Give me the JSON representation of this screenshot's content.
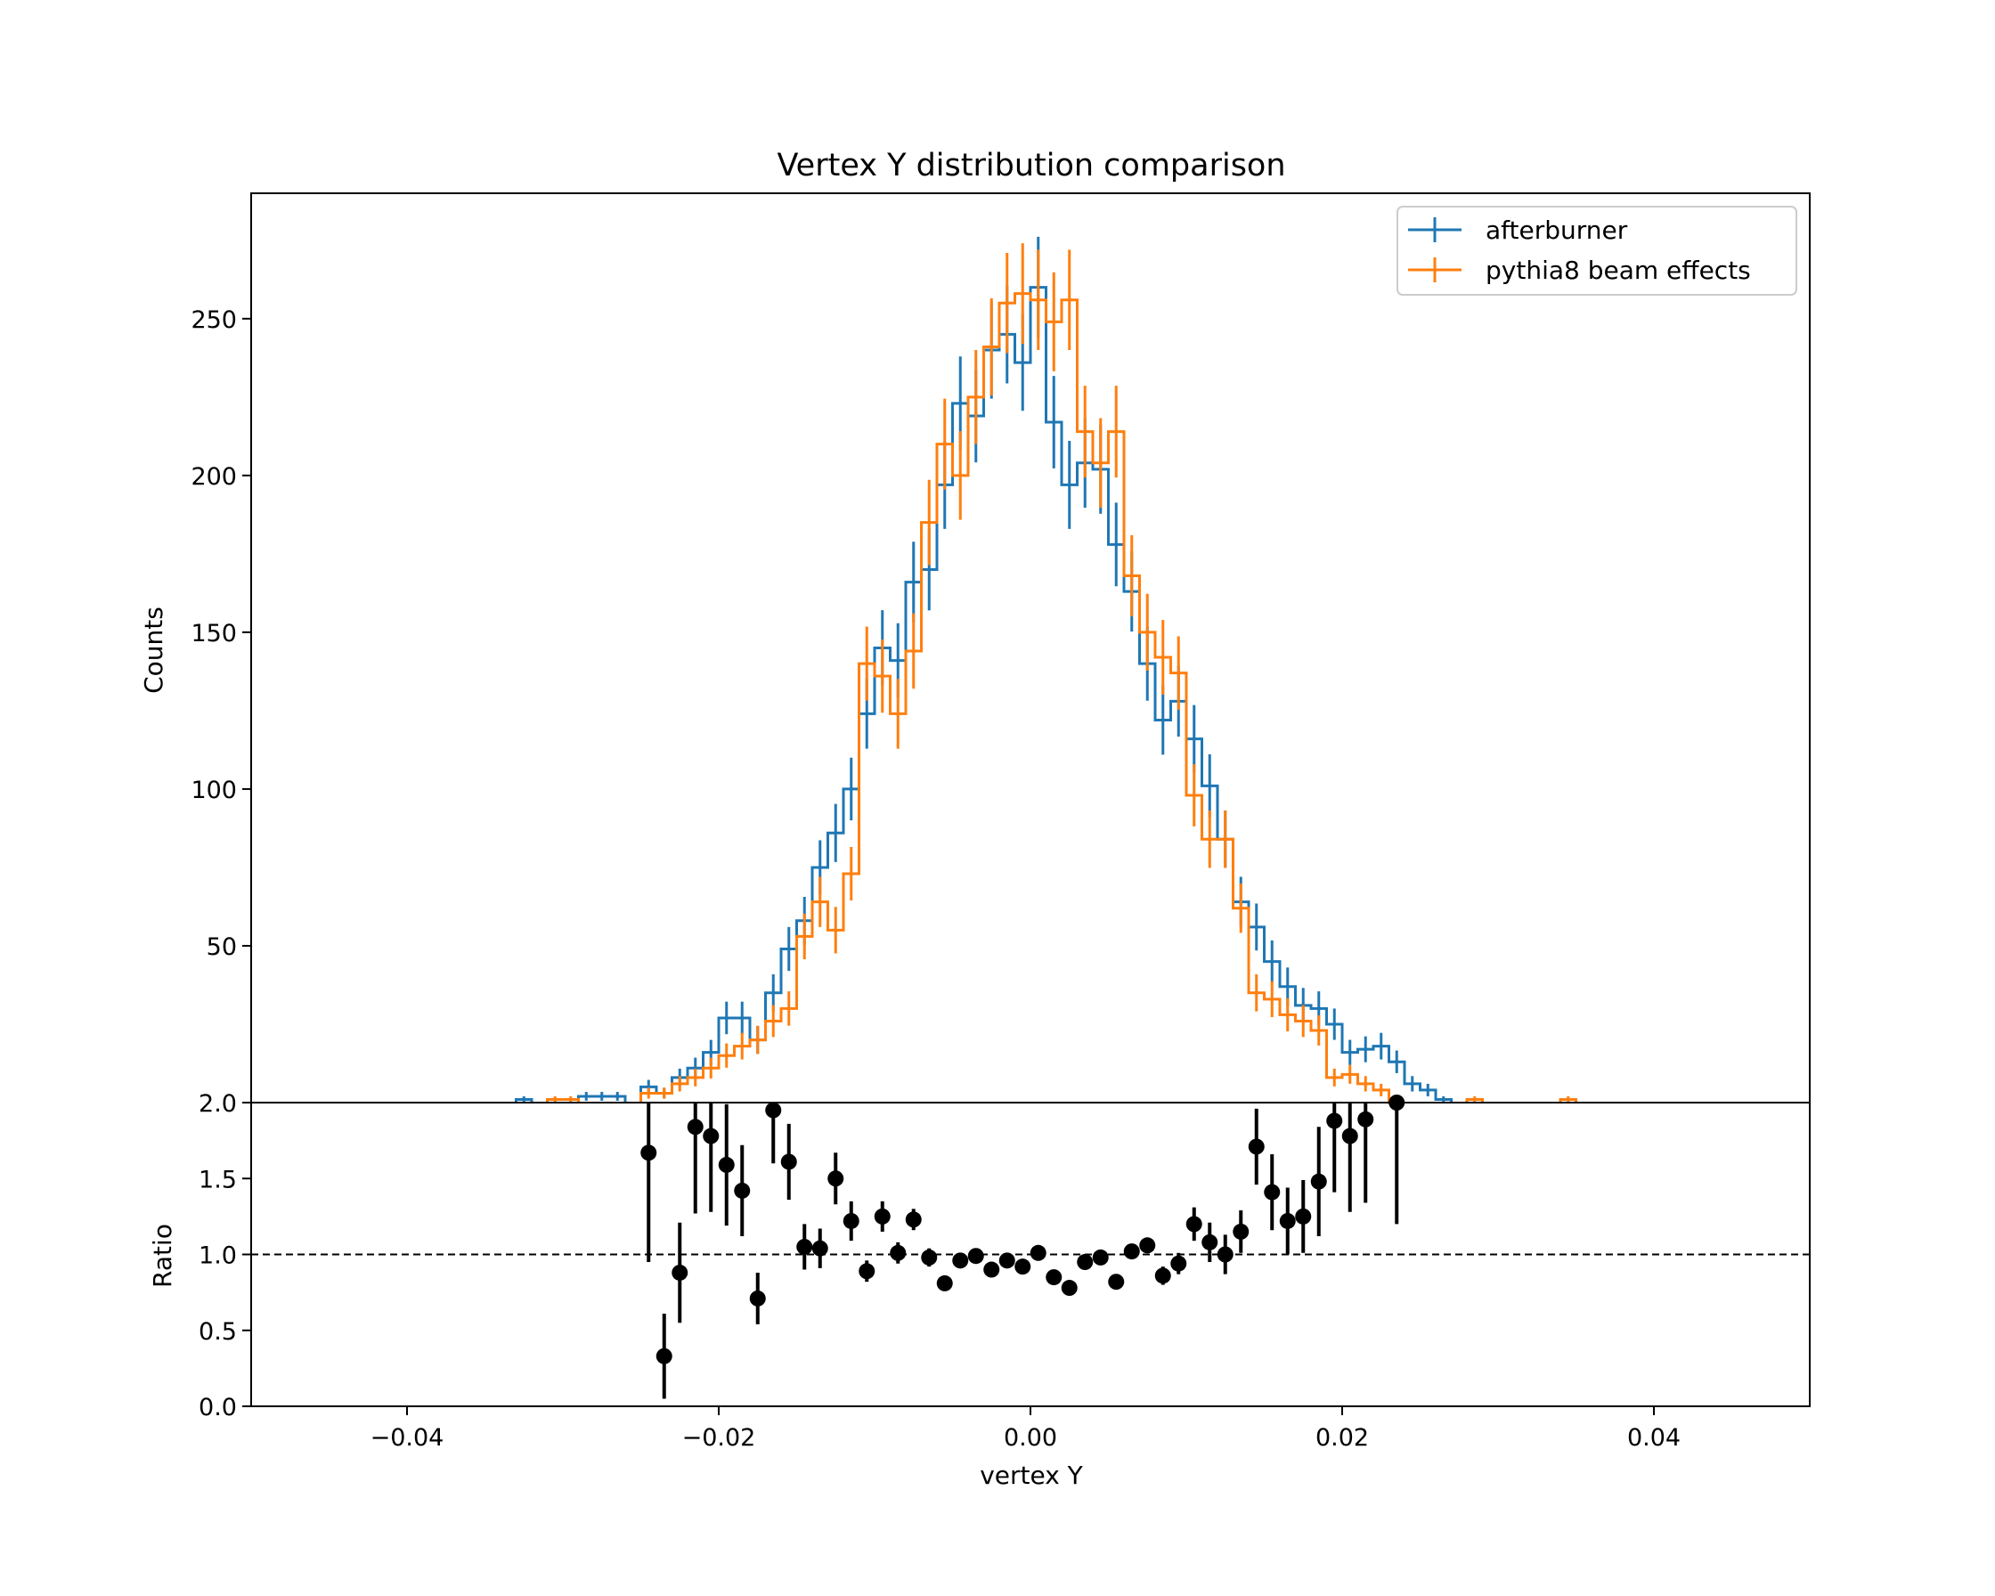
{
  "chart_data": [
    {
      "type": "histogram-step",
      "title": "Vertex Y distribution comparison",
      "ylabel": "Counts",
      "xlim": [
        -0.05,
        0.05
      ],
      "ylim": [
        0,
        290
      ],
      "y_ticks": [
        "50",
        "100",
        "150",
        "200",
        "250"
      ],
      "y_tick_values": [
        50,
        100,
        150,
        200,
        250
      ],
      "legend": {
        "location": "upper right",
        "entries": [
          "afterburner",
          "pythia8 beam effects"
        ]
      },
      "bin_width": 0.001,
      "series": [
        {
          "name": "afterburner",
          "color": "#1f77b4",
          "bin_centers": [
            -0.0325,
            -0.0285,
            -0.0275,
            -0.0265,
            -0.0245,
            -0.0235,
            -0.0225,
            -0.0215,
            -0.0205,
            -0.0195,
            -0.0185,
            -0.0175,
            -0.0165,
            -0.0155,
            -0.0145,
            -0.0135,
            -0.0125,
            -0.0115,
            -0.0105,
            -0.0095,
            -0.0085,
            -0.0075,
            -0.0065,
            -0.0055,
            -0.0045,
            -0.0035,
            -0.0025,
            -0.0015,
            -0.0005,
            0.0005,
            0.0015,
            0.0025,
            0.0035,
            0.0045,
            0.0055,
            0.0065,
            0.0075,
            0.0085,
            0.0095,
            0.0105,
            0.0115,
            0.0125,
            0.0135,
            0.0145,
            0.0155,
            0.0165,
            0.0175,
            0.0185,
            0.0195,
            0.0205,
            0.0215,
            0.0225,
            0.0235,
            0.0245,
            0.0255,
            0.0265
          ],
          "counts": [
            1,
            2,
            2,
            2,
            5,
            3,
            8,
            11,
            16,
            27,
            27,
            20,
            35,
            49,
            58,
            75,
            86,
            100,
            124,
            145,
            141,
            166,
            170,
            197,
            223,
            219,
            240,
            245,
            236,
            260,
            217,
            197,
            204,
            202,
            178,
            163,
            140,
            122,
            128,
            116,
            101,
            84,
            64,
            56,
            45,
            37,
            31,
            30,
            25,
            16,
            17,
            18,
            13,
            6,
            4,
            1
          ]
        },
        {
          "name": "pythia8 beam effects",
          "color": "#ff7f0e",
          "bin_centers": [
            -0.0305,
            -0.0295,
            -0.0245,
            -0.0235,
            -0.0225,
            -0.0215,
            -0.0205,
            -0.0195,
            -0.0185,
            -0.0175,
            -0.0165,
            -0.0155,
            -0.0145,
            -0.0135,
            -0.0125,
            -0.0115,
            -0.0105,
            -0.0095,
            -0.0085,
            -0.0075,
            -0.0065,
            -0.0055,
            -0.0045,
            -0.0035,
            -0.0025,
            -0.0015,
            -0.0005,
            0.0005,
            0.0015,
            0.0025,
            0.0035,
            0.0045,
            0.0055,
            0.0065,
            0.0075,
            0.0085,
            0.0095,
            0.0105,
            0.0115,
            0.0125,
            0.0135,
            0.0145,
            0.0155,
            0.0165,
            0.0175,
            0.0185,
            0.0195,
            0.0205,
            0.0215,
            0.0225,
            0.0235,
            0.0285,
            0.0345
          ],
          "counts": [
            1,
            1,
            3,
            3,
            6,
            8,
            11,
            15,
            18,
            20,
            26,
            30,
            53,
            64,
            55,
            73,
            140,
            136,
            124,
            144,
            185,
            210,
            200,
            225,
            241,
            255,
            258,
            256,
            249,
            256,
            214,
            204,
            214,
            168,
            150,
            142,
            137,
            98,
            84,
            84,
            62,
            35,
            33,
            28,
            26,
            23,
            8,
            9,
            6,
            4,
            0,
            1,
            1
          ]
        }
      ]
    },
    {
      "type": "scatter-errorbar",
      "xlabel": "vertex Y",
      "ylabel": "Ratio",
      "xlim": [
        -0.05,
        0.05
      ],
      "ylim": [
        0,
        2.0
      ],
      "x_ticks": [
        "−0.04",
        "−0.02",
        "0.00",
        "0.02",
        "0.04"
      ],
      "x_tick_values": [
        -0.04,
        -0.02,
        0.0,
        0.02,
        0.04
      ],
      "y_ticks": [
        "0.0",
        "0.5",
        "1.0",
        "1.5",
        "2.0"
      ],
      "y_tick_values": [
        0.0,
        0.5,
        1.0,
        1.5,
        2.0
      ],
      "reference_line": 1.0,
      "color": "#000000",
      "points": {
        "x": [
          -0.0245,
          -0.0235,
          -0.0225,
          -0.0215,
          -0.0205,
          -0.0195,
          -0.0185,
          -0.0175,
          -0.0165,
          -0.0155,
          -0.0145,
          -0.0135,
          -0.0125,
          -0.0115,
          -0.0105,
          -0.0095,
          -0.0085,
          -0.0075,
          -0.0065,
          -0.0055,
          -0.0045,
          -0.0035,
          -0.0025,
          -0.0015,
          -0.0005,
          0.0005,
          0.0015,
          0.0025,
          0.0035,
          0.0045,
          0.0055,
          0.0065,
          0.0075,
          0.0085,
          0.0095,
          0.0105,
          0.0115,
          0.0125,
          0.0135,
          0.0145,
          0.0155,
          0.0165,
          0.0175,
          0.0185,
          0.0195,
          0.0205,
          0.0215,
          0.0235
        ],
        "y": [
          1.67,
          0.33,
          0.88,
          1.84,
          1.78,
          1.59,
          1.42,
          0.71,
          1.95,
          1.61,
          1.05,
          1.04,
          1.5,
          1.22,
          0.89,
          1.25,
          1.01,
          1.23,
          0.98,
          0.81,
          0.96,
          0.99,
          0.9,
          0.96,
          0.92,
          1.01,
          0.85,
          0.78,
          0.95,
          0.98,
          0.82,
          1.02,
          1.06,
          0.86,
          0.94,
          1.2,
          1.08,
          1.0,
          1.15,
          1.71,
          1.41,
          1.22,
          1.25,
          1.48,
          1.88,
          1.78,
          1.89,
          2.0
        ],
        "err": [
          0.72,
          0.28,
          0.33,
          0.57,
          0.5,
          0.4,
          0.3,
          0.17,
          0.35,
          0.25,
          0.15,
          0.13,
          0.17,
          0.13,
          0.07,
          0.1,
          0.07,
          0.07,
          0.06,
          0.05,
          0.05,
          0.04,
          0.04,
          0.04,
          0.04,
          0.04,
          0.04,
          0.04,
          0.04,
          0.04,
          0.04,
          0.04,
          0.05,
          0.06,
          0.07,
          0.11,
          0.13,
          0.13,
          0.14,
          0.25,
          0.25,
          0.22,
          0.24,
          0.36,
          0.47,
          0.5,
          0.55,
          0.8
        ]
      }
    }
  ]
}
